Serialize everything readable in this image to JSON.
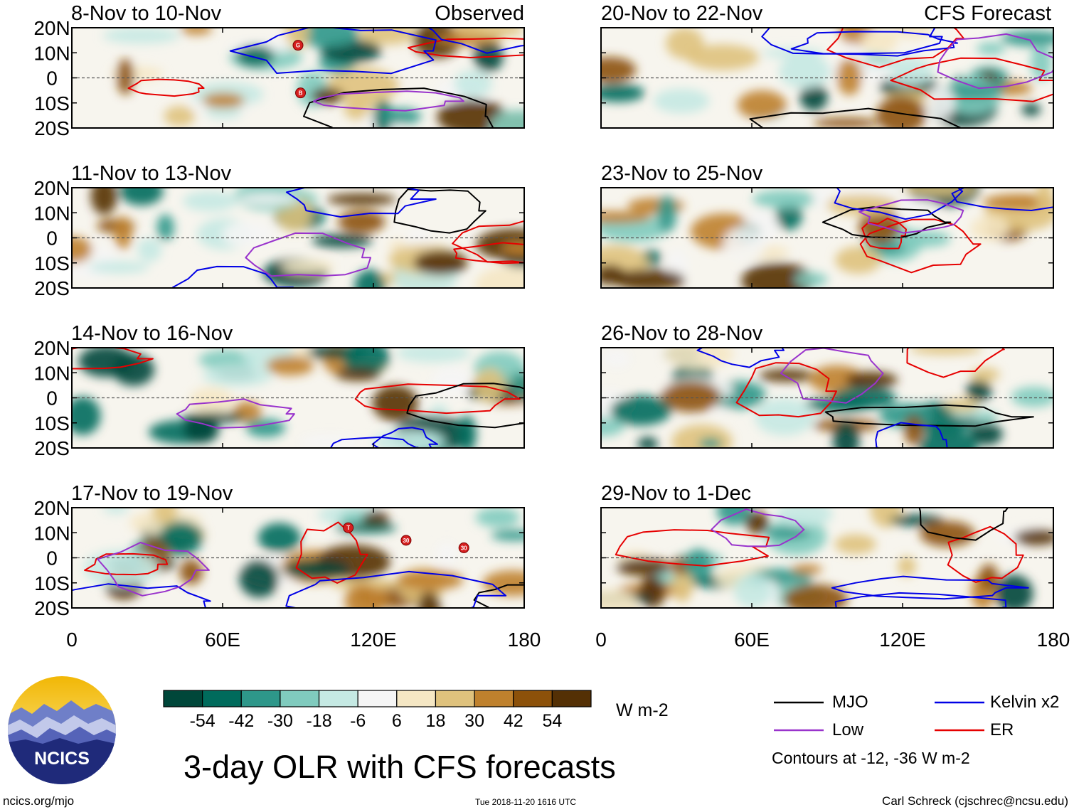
{
  "chart_data": {
    "type": "heatmap",
    "title": "3-day OLR with CFS forecasts",
    "colorbar": {
      "unit": "W m-2",
      "tick_labels": [
        "-54",
        "-42",
        "-30",
        "-18",
        "-6",
        "6",
        "18",
        "30",
        "42",
        "54"
      ],
      "colors": [
        "#00473a",
        "#006b5c",
        "#2e978a",
        "#80cbbe",
        "#c5e9e3",
        "#f5f5f5",
        "#f5e7c4",
        "#dfc27d",
        "#bf812d",
        "#8c510a",
        "#543005"
      ]
    },
    "contour_note": "Contours at -12, -36 W m-2",
    "legend": [
      {
        "label": "MJO",
        "color": "#000000"
      },
      {
        "label": "Kelvin x2",
        "color": "#0000e6"
      },
      {
        "label": "Low",
        "color": "#9933cc"
      },
      {
        "label": "ER",
        "color": "#e60000"
      }
    ],
    "x_ticks": [
      "0",
      "60E",
      "120E",
      "180"
    ],
    "y_ticks": [
      "20N",
      "10N",
      "0",
      "10S",
      "20S"
    ],
    "x_range": [
      0,
      180
    ],
    "y_range": [
      -20,
      20
    ],
    "columns": [
      {
        "header": "Observed",
        "panels": [
          {
            "label": "8-Nov to 10-Nov",
            "markers": [
              {
                "lon": 90,
                "lat": 13,
                "text": "G"
              },
              {
                "lon": 91,
                "lat": -6,
                "text": "B"
              }
            ]
          },
          {
            "label": "11-Nov to 13-Nov",
            "markers": []
          },
          {
            "label": "14-Nov to 16-Nov",
            "markers": []
          },
          {
            "label": "17-Nov to 19-Nov",
            "markers": [
              {
                "lon": 110,
                "lat": 12,
                "text": "T"
              },
              {
                "lon": 133,
                "lat": 7,
                "text": "30"
              },
              {
                "lon": 156,
                "lat": 4,
                "text": "30"
              }
            ]
          }
        ]
      },
      {
        "header": "CFS Forecast",
        "panels": [
          {
            "label": "20-Nov to 22-Nov",
            "markers": []
          },
          {
            "label": "23-Nov to 25-Nov",
            "markers": []
          },
          {
            "label": "26-Nov to 28-Nov",
            "markers": []
          },
          {
            "label": "29-Nov to 1-Dec",
            "markers": []
          }
        ]
      }
    ]
  },
  "logo": {
    "text": "NCICS"
  },
  "footer": {
    "left": "ncics.org/mjo",
    "center": "Tue 2018-11-20 1616 UTC",
    "right": "Carl Schreck (cjschrec@ncsu.edu)"
  }
}
